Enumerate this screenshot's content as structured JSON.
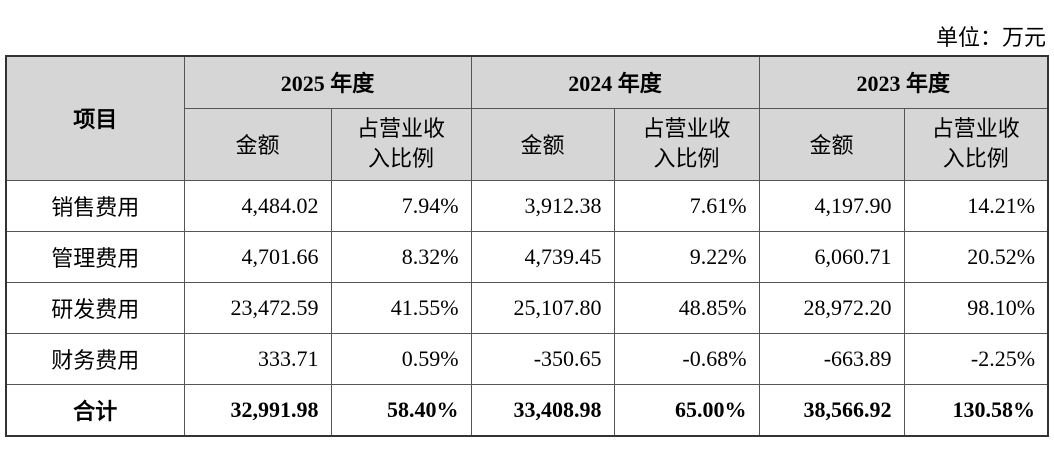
{
  "unit": "单位：万元",
  "header": {
    "item": "项目",
    "columns": [
      {
        "year": "2025 年度",
        "amount": "金额",
        "ratio": "占营业收入比例"
      },
      {
        "year": "2024 年度",
        "amount": "金额",
        "ratio": "占营业收入比例"
      },
      {
        "year": "2023 年度",
        "amount": "金额",
        "ratio": "占营业收入比例"
      }
    ]
  },
  "rows": [
    {
      "label": "销售费用",
      "cells": [
        "4,484.02",
        "7.94%",
        "3,912.38",
        "7.61%",
        "4,197.90",
        "14.21%"
      ]
    },
    {
      "label": "管理费用",
      "cells": [
        "4,701.66",
        "8.32%",
        "4,739.45",
        "9.22%",
        "6,060.71",
        "20.52%"
      ]
    },
    {
      "label": "研发费用",
      "cells": [
        "23,472.59",
        "41.55%",
        "25,107.80",
        "48.85%",
        "28,972.20",
        "98.10%"
      ]
    },
    {
      "label": "财务费用",
      "cells": [
        "333.71",
        "0.59%",
        "-350.65",
        "-0.68%",
        "-663.89",
        "-2.25%"
      ]
    },
    {
      "label": "合计",
      "cells": [
        "32,991.98",
        "58.40%",
        "33,408.98",
        "65.00%",
        "38,566.92",
        "130.58%"
      ]
    }
  ]
}
